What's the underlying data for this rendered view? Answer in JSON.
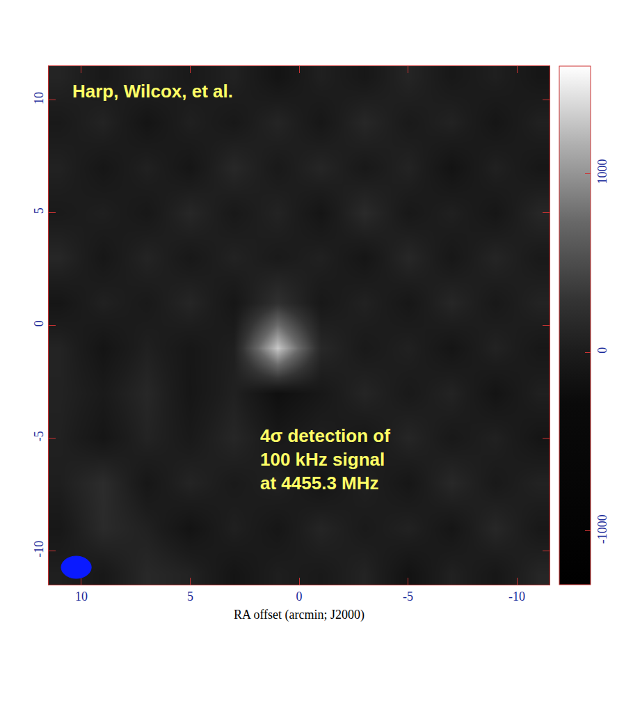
{
  "chart_data": {
    "type": "heatmap",
    "xlabel": "RA offset (arcmin; J2000)",
    "annotations": [
      "Harp, Wilcox, et al.",
      "4σ detection of 100 kHz signal at 4455.3 MHz"
    ],
    "x": [
      -11,
      -9,
      -7,
      -5,
      -3,
      -1,
      1,
      3,
      5,
      7,
      9,
      11
    ],
    "y": [
      -11,
      -9,
      -7,
      -5,
      -3,
      -1,
      1,
      3,
      5,
      7,
      9,
      11
    ],
    "z": [
      [
        120,
        -80,
        60,
        -150,
        90,
        -40,
        30,
        -120,
        80,
        150,
        -60,
        40
      ],
      [
        -60,
        140,
        -100,
        70,
        -30,
        110,
        -90,
        50,
        -140,
        60,
        180,
        -70
      ],
      [
        80,
        -40,
        150,
        -90,
        60,
        -120,
        70,
        -30,
        100,
        -80,
        200,
        30
      ],
      [
        -110,
        60,
        -50,
        120,
        -80,
        40,
        -60,
        130,
        -40,
        90,
        -100,
        60
      ],
      [
        50,
        -130,
        90,
        -40,
        110,
        -70,
        -200,
        60,
        -90,
        140,
        -30,
        80
      ],
      [
        -70,
        80,
        -110,
        60,
        -40,
        150,
        1300,
        40,
        -80,
        50,
        -120,
        90
      ],
      [
        90,
        -50,
        130,
        -80,
        70,
        -60,
        250,
        -90,
        120,
        -40,
        60,
        -100
      ],
      [
        -40,
        110,
        -70,
        140,
        -100,
        60,
        -30,
        80,
        -60,
        100,
        -80,
        130
      ],
      [
        130,
        -90,
        50,
        -60,
        180,
        -110,
        90,
        -50,
        140,
        -70,
        40,
        -30
      ],
      [
        -80,
        60,
        -140,
        90,
        -50,
        120,
        -40,
        150,
        -100,
        60,
        -90,
        70
      ],
      [
        60,
        -100,
        80,
        -30,
        140,
        -80,
        110,
        -60,
        50,
        -120,
        90,
        -40
      ],
      [
        -90,
        40,
        -60,
        110,
        -70,
        50,
        -130,
        70,
        -40,
        80,
        -50,
        100
      ]
    ],
    "xlim": [
      11.5,
      -11.5
    ],
    "ylim": [
      -11.5,
      11.5
    ],
    "xticks": [
      10,
      5,
      0,
      -5,
      -10
    ],
    "yticks": [
      10,
      5,
      0,
      -5,
      -10
    ],
    "zlim": [
      -1300,
      1600
    ],
    "zticks": [
      1000,
      0,
      -1000
    ],
    "color": "gray",
    "grid": false
  }
}
